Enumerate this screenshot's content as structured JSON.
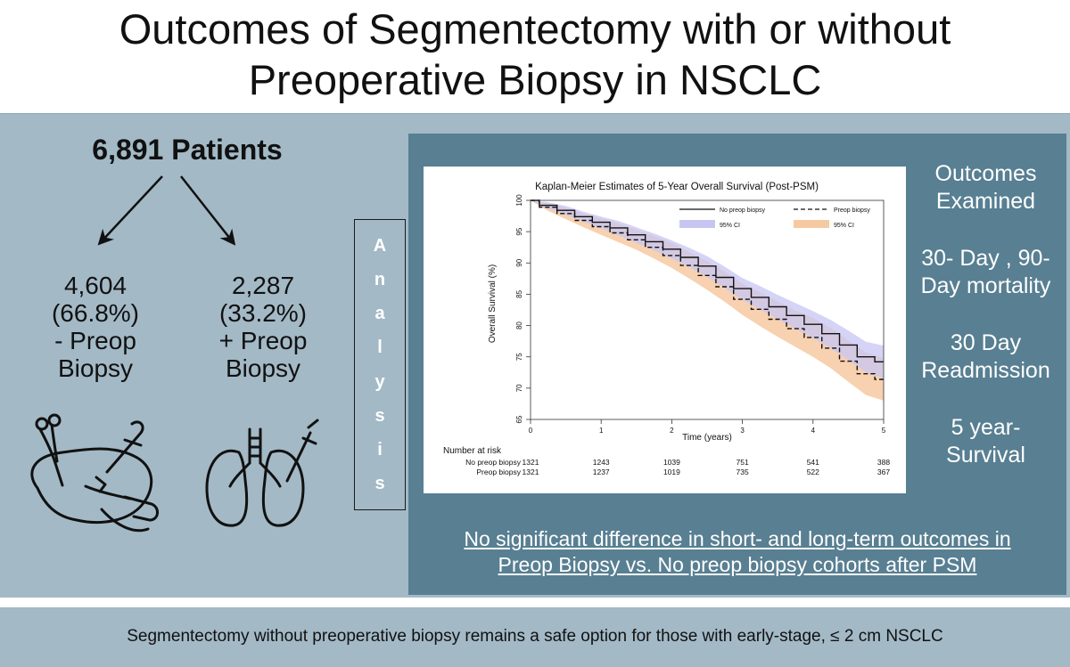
{
  "title": {
    "line1": "Outcomes of Segmentectomy with or without",
    "line2": "Preoperative Biopsy in NSCLC"
  },
  "cohort": {
    "total": "6,891 Patients",
    "groups": [
      {
        "count": "4,604",
        "percent": "(66.8%)",
        "label1": "- Preop",
        "label2": "Biopsy"
      },
      {
        "count": "2,287",
        "percent": "(33.2%)",
        "label1": "+ Preop",
        "label2": "Biopsy"
      }
    ]
  },
  "analysis_letters": [
    "A",
    "n",
    "a",
    "l",
    "y",
    "s",
    "i",
    "s"
  ],
  "icons": [
    "surgical-lung-icon",
    "lung-biopsy-icon"
  ],
  "outcomes": {
    "heading1": "Outcomes",
    "heading2": "Examined",
    "items": [
      {
        "l1": "30- Day , 90-",
        "l2": "Day mortality"
      },
      {
        "l1": "30 Day",
        "l2": "Readmission"
      },
      {
        "l1": "5 year-",
        "l2": "Survival"
      }
    ]
  },
  "conclusion": {
    "line1": "No significant difference in short- and long-term outcomes in",
    "line2": "Preop Biopsy vs. No preop biopsy cohorts after PSM"
  },
  "footer": "Segmentectomy without preoperative biopsy remains a safe option for those with early-stage, ≤ 2 cm NSCLC",
  "colors": {
    "panel": "#a3b9c6",
    "dark_panel": "#587f92",
    "no_preop_ci": "#c7c6f3",
    "preop_ci": "#f6c9a2"
  },
  "chart_data": {
    "type": "line",
    "title": "Kaplan-Meier Estimates of 5-Year Overall Survival (Post-PSM)",
    "xlabel": "Time (years)",
    "ylabel": "Overall Survival (%)",
    "xlim": [
      0,
      5
    ],
    "ylim": [
      65,
      100
    ],
    "x_ticks": [
      0,
      1,
      2,
      3,
      4,
      5
    ],
    "y_ticks": [
      65,
      70,
      75,
      80,
      85,
      90,
      95,
      100
    ],
    "legend_position": "top-right",
    "series": [
      {
        "name": "No preop biopsy",
        "style": "solid",
        "ci_label": "95% CI",
        "x": [
          0,
          0.25,
          0.5,
          0.75,
          1,
          1.25,
          1.5,
          1.75,
          2,
          2.25,
          2.5,
          2.75,
          3,
          3.25,
          3.5,
          3.75,
          4,
          4.25,
          4.5,
          4.75,
          5
        ],
        "values": [
          100,
          99.2,
          98.4,
          97.4,
          96.5,
          95.6,
          94.5,
          93.4,
          92.2,
          90.9,
          89.5,
          87.7,
          85.9,
          84.5,
          83,
          81.6,
          80.2,
          78.7,
          76.9,
          75,
          74.2
        ],
        "lower": [
          100,
          98.7,
          97.7,
          96.6,
          95.5,
          94.4,
          93.2,
          92,
          90.7,
          89.3,
          87.8,
          86,
          84.1,
          82.6,
          81,
          79.5,
          78,
          76.4,
          74.5,
          72.5,
          71.6
        ],
        "upper": [
          100,
          99.7,
          99.1,
          98.2,
          97.4,
          96.7,
          95.7,
          94.7,
          93.6,
          92.4,
          91.1,
          89.4,
          87.6,
          86.3,
          84.9,
          83.6,
          82.3,
          80.9,
          79.2,
          77.4,
          76.8
        ]
      },
      {
        "name": "Preop biopsy",
        "style": "dashed",
        "ci_label": "95% CI",
        "x": [
          0,
          0.25,
          0.5,
          0.75,
          1,
          1.25,
          1.5,
          1.75,
          2,
          2.25,
          2.5,
          2.75,
          3,
          3.25,
          3.5,
          3.75,
          4,
          4.25,
          4.5,
          4.75,
          5
        ],
        "values": [
          100,
          98.9,
          97.9,
          96.8,
          95.8,
          94.8,
          93.7,
          92.5,
          91.2,
          89.6,
          88,
          86.2,
          84.2,
          82.6,
          81,
          79.5,
          78.1,
          76.4,
          74.3,
          72.3,
          71.4
        ],
        "lower": [
          100,
          98.3,
          97,
          95.7,
          94.5,
          93.3,
          92.1,
          90.7,
          89.2,
          87.5,
          85.7,
          83.8,
          81.7,
          79.9,
          78.2,
          76.6,
          75,
          73.2,
          71,
          68.9,
          68
        ],
        "upper": [
          100,
          99.5,
          98.8,
          97.9,
          97.1,
          96.3,
          95.3,
          94.3,
          93.2,
          91.7,
          90.3,
          88.6,
          86.7,
          85.3,
          83.8,
          82.4,
          81.2,
          79.6,
          77.6,
          75.7,
          74.8
        ]
      }
    ],
    "risk_table": {
      "title": "Number at risk",
      "times": [
        0,
        1,
        2,
        3,
        4,
        5
      ],
      "rows": [
        {
          "label": "No preop biopsy",
          "counts": [
            1321,
            1243,
            1039,
            751,
            541,
            388
          ]
        },
        {
          "label": "Preop biopsy",
          "counts": [
            1321,
            1237,
            1019,
            735,
            522,
            367
          ]
        }
      ]
    }
  }
}
